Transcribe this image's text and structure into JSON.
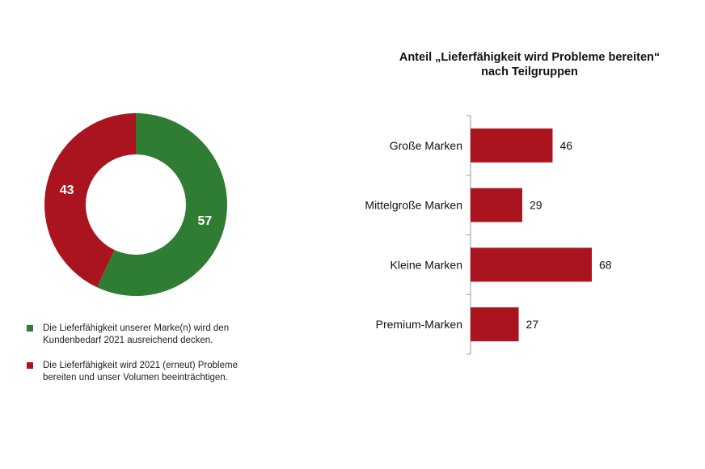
{
  "colors": {
    "green": "#2e7d32",
    "red": "#a9141f"
  },
  "donut": {
    "legend": [
      {
        "color": "#2e7d32",
        "text": "Die Lieferfähigkeit unserer Marke(n) wird den Kundenbedarf 2021 ausreichend decken."
      },
      {
        "color": "#a9141f",
        "text": "Die Lieferfähigkeit wird 2021 (erneut) Probleme bereiten und unser Volumen beeinträchtigen."
      }
    ]
  },
  "bar": {
    "title_line1": "Anteil „Lieferfähigkeit wird Probleme bereiten“",
    "title_line2": "nach Teilgruppen"
  },
  "chart_data": [
    {
      "type": "pie",
      "donut": true,
      "labels": [
        "",
        ""
      ],
      "values": [
        57,
        43
      ],
      "colors": [
        "#2e7d32",
        "#a9141f"
      ]
    },
    {
      "type": "bar",
      "orientation": "horizontal",
      "title": "Anteil „Lieferfähigkeit wird Probleme bereiten“ nach Teilgruppen",
      "categories": [
        "Große Marken",
        "Mittelgroße Marken",
        "Kleine Marken",
        "Premium-Marken"
      ],
      "values": [
        46,
        29,
        68,
        27
      ],
      "color": "#a9141f"
    }
  ]
}
